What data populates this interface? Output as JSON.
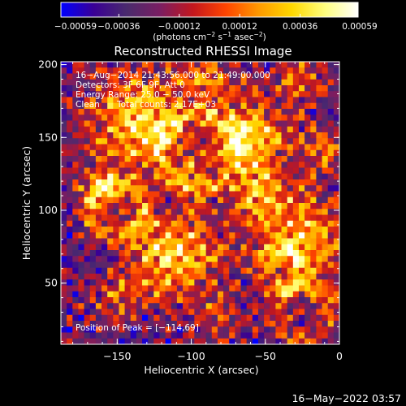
{
  "chart_data": {
    "type": "heatmap",
    "title": "Reconstructed RHESSI Image",
    "xlabel": "Heliocentric X (arcsec)",
    "ylabel": "Heliocentric Y (arcsec)",
    "xlim": [
      -188,
      0
    ],
    "ylim": [
      8,
      202
    ],
    "x_ticks": [
      -150,
      -100,
      -50,
      0
    ],
    "x_tick_labels": [
      "−150",
      "−100",
      "−50",
      "0"
    ],
    "y_ticks": [
      50,
      100,
      150,
      200
    ],
    "y_tick_labels": [
      "50",
      "100",
      "150",
      "200"
    ],
    "grid": false,
    "colorbar": {
      "min": -0.00059,
      "max": 0.00059,
      "ticks": [
        -0.00059,
        -0.00036,
        -0.00012,
        0.00012,
        0.00036,
        0.00059
      ],
      "tick_labels": [
        "−0.00059",
        "−0.00036",
        "−0.00012",
        "0.00012",
        "0.00036",
        "0.00059"
      ],
      "label_main": "(photons cm",
      "label_sup1": "−2",
      "label_mid": " s",
      "label_sup2": "−1",
      "label_end": " asec",
      "label_sup3": "−2",
      "label_close": ")",
      "colors": [
        "#0000ff",
        "#3a0095",
        "#4a2b6d",
        "#7a1e62",
        "#c3171e",
        "#ff4500",
        "#ff9a00",
        "#ffd800",
        "#ffff80",
        "#ffffff"
      ]
    },
    "annotations": {
      "time_range": "16−Aug−2014 21:43:56.000 to 21:49:00.000",
      "detectors": "Detectors: 3F 6F 9F, Att 0",
      "energy": "Energy Range: 25.0 − 50.0 keV",
      "clean_label": "Clean",
      "counts": "Total counts: 2.17E+03",
      "peak": "Position of Peak = [−114,69]"
    },
    "grid_size": [
      48,
      48
    ],
    "peak": {
      "x": -114,
      "y": 69
    }
  },
  "footer": {
    "timestamp": "16−May−2022 03:57"
  }
}
